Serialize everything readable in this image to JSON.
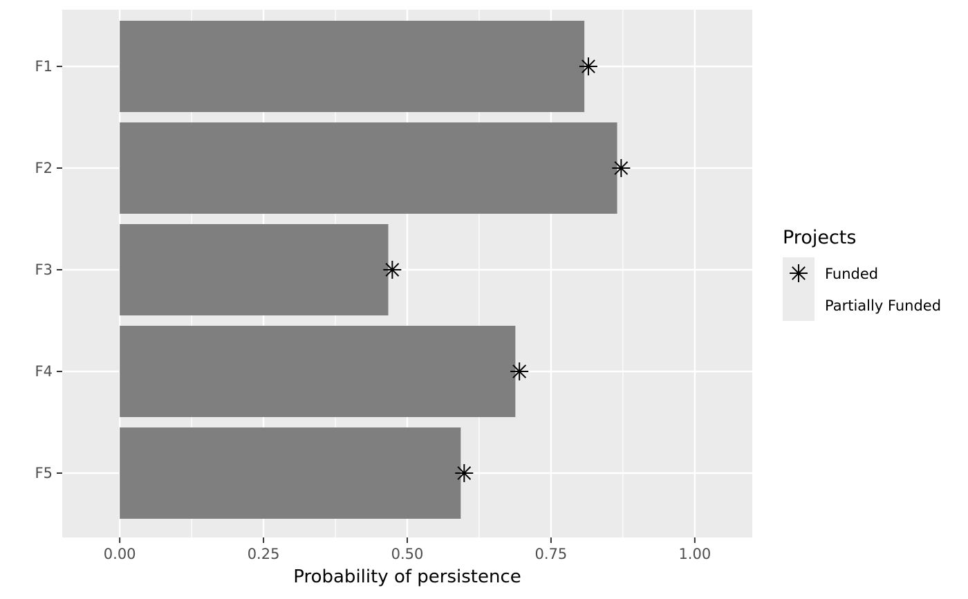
{
  "chart_data": {
    "type": "bar",
    "orientation": "horizontal",
    "categories": [
      "F1",
      "F2",
      "F3",
      "F4",
      "F5"
    ],
    "series": [
      {
        "name": "Partially Funded",
        "mark": "bar",
        "values": [
          0.808,
          0.865,
          0.467,
          0.688,
          0.593
        ]
      },
      {
        "name": "Funded",
        "mark": "asterisk",
        "values": [
          0.815,
          0.872,
          0.474,
          0.695,
          0.599
        ]
      }
    ],
    "xlabel": "Probability of persistence",
    "ylabel": "",
    "xlim": [
      -0.1,
      1.1
    ],
    "xticks": [
      0,
      0.25,
      0.5,
      0.75,
      1.0
    ],
    "xtick_labels": [
      "0.00",
      "0.25",
      "0.50",
      "0.75",
      "1.00"
    ],
    "grid": true,
    "legend": {
      "title": "Projects",
      "position": "right",
      "entries": [
        "Funded",
        "Partially Funded"
      ]
    },
    "colors": {
      "panel_background": "#ebebeb",
      "grid": "#ffffff",
      "bar_fill": "#7f7f7f",
      "point": "#000000",
      "tick_text": "#4d4d4d"
    }
  }
}
